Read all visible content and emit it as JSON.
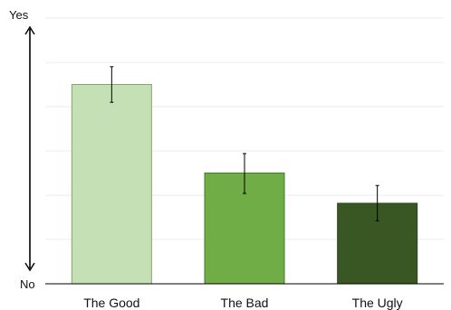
{
  "chart_data": {
    "type": "bar",
    "title": "",
    "xlabel": "",
    "ylabel": "",
    "y_top_label": "Yes",
    "y_bottom_label": "No",
    "ylim": [
      0,
      1
    ],
    "grid": true,
    "gridlines": [
      0.167,
      0.333,
      0.5,
      0.667,
      0.833,
      1.0
    ],
    "categories": [
      "The Good",
      "The Bad",
      "The Ugly"
    ],
    "values": [
      0.75,
      0.417,
      0.303
    ],
    "error_low": [
      0.683,
      0.34,
      0.237
    ],
    "error_high": [
      0.817,
      0.49,
      0.37
    ],
    "colors": [
      "#c5e0b4",
      "#70ad47",
      "#385723"
    ],
    "bar_border_colors": [
      "#7fa86a",
      "#3f7a24",
      "#2a4419"
    ],
    "axis_color": "#000000",
    "grid_color": "#ececec"
  }
}
